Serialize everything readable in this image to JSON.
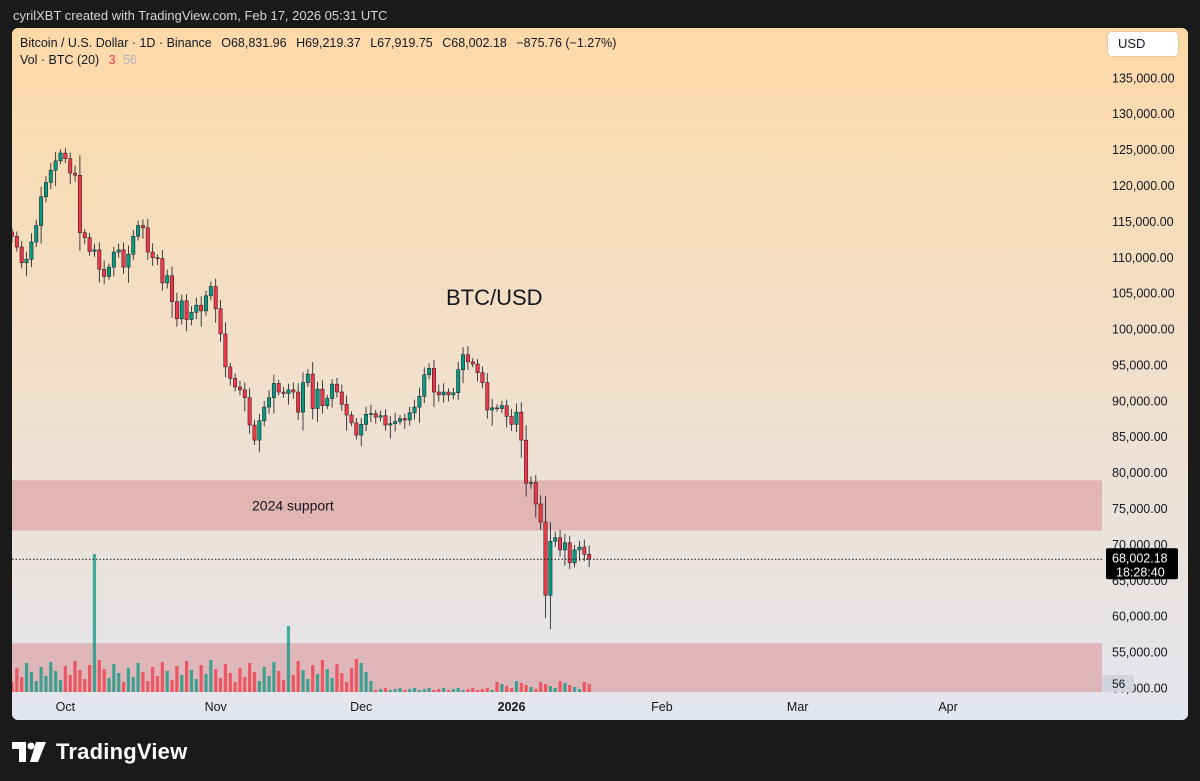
{
  "credit": "cyrilXBT created with TradingView.com, Feb 17, 2026 05:31 UTC",
  "header": {
    "symbol": "Bitcoin / U.S. Dollar · 1D · Binance",
    "open": "O68,831.96",
    "high": "H69,219.37",
    "low": "L67,919.75",
    "close": "C68,002.18",
    "change": "−875.76 (−1.27%)",
    "vol_label": "Vol · BTC (20)",
    "vol_value_1": "3",
    "vol_value_2": "56"
  },
  "currency_button": "USD",
  "footer_brand": "TradingView",
  "colors": {
    "up": "#089981",
    "down": "#f23645",
    "zone": "#d98f92",
    "bg_top": "#fdd9a8",
    "bg_bottom": "#e4e6ef",
    "price_line": "#131722",
    "current_label": "#000000"
  },
  "chart_data": {
    "type": "candlestick",
    "title": "BTC/USD",
    "xlabel": "",
    "ylabel": "",
    "ylim": [
      47000,
      140000
    ],
    "y_ticks": [
      "135,000.00",
      "130,000.00",
      "125,000.00",
      "120,000.00",
      "115,000.00",
      "110,000.00",
      "105,000.00",
      "100,000.00",
      "95,000.00",
      "90,000.00",
      "85,000.00",
      "80,000.00",
      "75,000.00",
      "70,000.00",
      "65,000.00",
      "60,000.00",
      "55,000.00",
      "50,000.00"
    ],
    "y_tick_values": [
      135000,
      130000,
      125000,
      120000,
      115000,
      110000,
      105000,
      100000,
      95000,
      90000,
      85000,
      80000,
      75000,
      70000,
      65000,
      60000,
      55000,
      50000
    ],
    "x_labels": [
      "Oct",
      "Nov",
      "Dec",
      "2026",
      "Feb",
      "Mar",
      "Apr"
    ],
    "x_label_dates": [
      "2025-10-01",
      "2025-11-01",
      "2025-12-01",
      "2026-01-01",
      "2026-02-01",
      "2026-03-01",
      "2026-04-01"
    ],
    "start_date": "2025-09-20",
    "grid": false,
    "zones": [
      {
        "label": "2024 support",
        "y_low": 72000,
        "y_high": 79000
      },
      {
        "label": "",
        "y_low": 49500,
        "y_high": 56300
      }
    ],
    "current_price": {
      "value": "68,002.18",
      "countdown": "18:28:40",
      "y": 68002.18
    },
    "volume_last": "56",
    "closes": [
      113000,
      111500,
      109300,
      109800,
      112200,
      114500,
      118500,
      120500,
      122200,
      123500,
      124600,
      123800,
      121800,
      121500,
      113500,
      112800,
      110900,
      111100,
      108400,
      107400,
      108700,
      110800,
      111100,
      108700,
      110500,
      113000,
      114500,
      114200,
      110800,
      110000,
      109900,
      106500,
      107500,
      103900,
      101500,
      104000,
      101400,
      102400,
      103400,
      102600,
      104700,
      106000,
      102900,
      99400,
      94800,
      93200,
      92000,
      91600,
      90500,
      86700,
      84600,
      87300,
      89200,
      90500,
      92500,
      91300,
      91100,
      91600,
      91300,
      88500,
      92600,
      93800,
      89000,
      91700,
      89400,
      90400,
      92400,
      91300,
      89600,
      88100,
      87000,
      85300,
      86800,
      88200,
      88300,
      87800,
      88000,
      86700,
      86900,
      87200,
      87600,
      87400,
      88400,
      89200,
      90700,
      93700,
      94600,
      91300,
      90900,
      91300,
      90900,
      91200,
      94400,
      96500,
      95500,
      95200,
      94000,
      92600,
      88800,
      89100,
      89000,
      89400,
      87900,
      86800,
      88500,
      84600,
      78600,
      78700,
      75700,
      73200,
      63000,
      70500,
      71000,
      69300,
      70300,
      67500,
      69300,
      69700,
      68700,
      68002
    ]
  }
}
